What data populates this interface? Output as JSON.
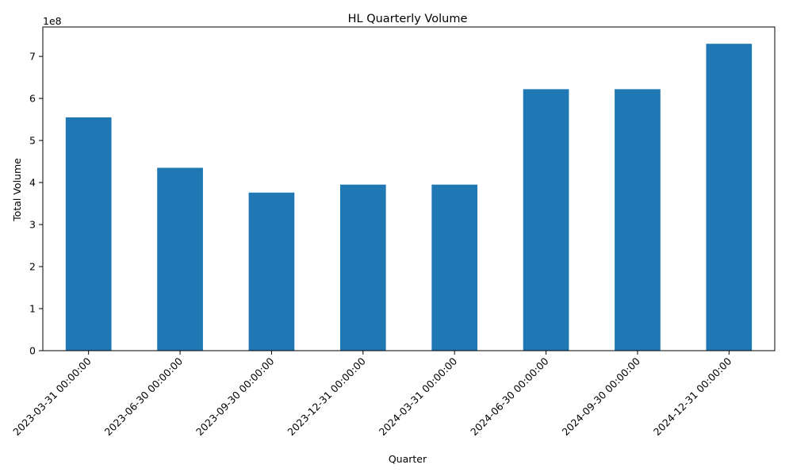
{
  "chart_data": {
    "type": "bar",
    "title": "HL Quarterly Volume",
    "xlabel": "Quarter",
    "ylabel": "Total Volume",
    "y_offset_label": "1e8",
    "y_scale_factor": 100000000,
    "categories": [
      "2023-03-31 00:00:00",
      "2023-06-30 00:00:00",
      "2023-09-30 00:00:00",
      "2023-12-31 00:00:00",
      "2024-03-31 00:00:00",
      "2024-06-30 00:00:00",
      "2024-09-30 00:00:00",
      "2024-12-31 00:00:00"
    ],
    "values": [
      555000000,
      435000000,
      376000000,
      395000000,
      395000000,
      622000000,
      622000000,
      730000000
    ],
    "yticks": [
      "0",
      "1",
      "2",
      "3",
      "4",
      "5",
      "6",
      "7"
    ],
    "ylim": [
      0,
      7.7
    ],
    "grid": false,
    "legend": "none",
    "bar_color": "#1f77b4"
  }
}
